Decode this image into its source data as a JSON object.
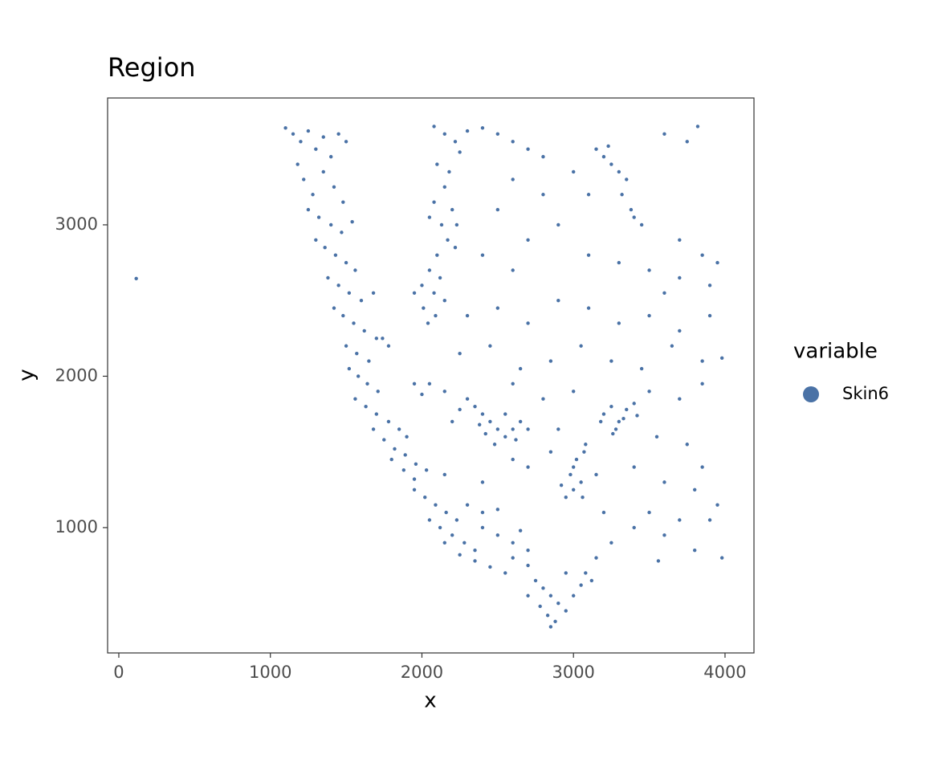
{
  "chart_data": {
    "type": "scatter",
    "title": "Region",
    "x_label": "x",
    "y_label": "y",
    "legend_title": "variable",
    "legend_position": "right",
    "xlim": [
      -74,
      4191
    ],
    "ylim": [
      172,
      3838
    ],
    "xticks": [
      0,
      1000,
      2000,
      3000,
      4000
    ],
    "yticks": [
      1000,
      2000,
      3000
    ],
    "grid": false,
    "series": [
      {
        "name": "Skin6",
        "color": "#4a72a6",
        "x": [
          115,
          1100,
          1150,
          1200,
          1250,
          1300,
          1350,
          1400,
          1450,
          1500,
          1180,
          1220,
          1280,
          1350,
          1420,
          1480,
          1250,
          1320,
          1400,
          1470,
          1540,
          1300,
          1360,
          1430,
          1500,
          1560,
          1380,
          1450,
          1520,
          1600,
          1680,
          1420,
          1480,
          1550,
          1620,
          1700,
          1780,
          1500,
          1570,
          1650,
          1740,
          1520,
          1580,
          1640,
          1710,
          1560,
          1630,
          1700,
          1780,
          1850,
          1900,
          1680,
          1750,
          1820,
          1890,
          1960,
          2030,
          1800,
          1880,
          1950,
          2150,
          1950,
          2020,
          2090,
          2160,
          2230,
          2050,
          2120,
          2200,
          2280,
          2350,
          2150,
          2250,
          2350,
          2450,
          2550,
          2400,
          2500,
          2600,
          2700,
          2650,
          2400,
          2500,
          2300,
          2600,
          2700,
          2750,
          2800,
          2850,
          2900,
          2950,
          2700,
          2780,
          2830,
          2880,
          2850,
          3000,
          3050,
          3080,
          2950,
          3120,
          2080,
          2150,
          2220,
          2300,
          2400,
          2500,
          2600,
          2700,
          2800,
          2250,
          2100,
          2180,
          2150,
          2080,
          2200,
          2130,
          2050,
          2170,
          2100,
          2220,
          2050,
          2120,
          2000,
          2080,
          2150,
          2010,
          2090,
          1950,
          2230,
          2040,
          2350,
          2400,
          2450,
          2500,
          2550,
          2600,
          2650,
          2480,
          2420,
          2700,
          2300,
          2250,
          2150,
          2050,
          1950,
          2550,
          2620,
          2380,
          2200,
          2000,
          3200,
          3250,
          3300,
          3350,
          3400,
          3280,
          3330,
          3420,
          3180,
          3260,
          2950,
          3000,
          3050,
          2980,
          3020,
          3070,
          2920,
          3060,
          3000,
          3080,
          3150,
          3200,
          3250,
          3300,
          3350,
          3320,
          3380,
          3400,
          3450,
          3230,
          2600,
          2800,
          3000,
          2500,
          2700,
          2900,
          3100,
          3600,
          3820,
          3750,
          2400,
          2600,
          3100,
          3300,
          3500,
          3700,
          3900,
          3850,
          3700,
          3950,
          2300,
          2500,
          2700,
          2900,
          3100,
          3300,
          3500,
          3700,
          3900,
          3600,
          2250,
          2450,
          2650,
          2850,
          3050,
          3250,
          3450,
          3650,
          3850,
          3980,
          2600,
          2800,
          3000,
          3500,
          3700,
          3850,
          2900,
          3550,
          3750,
          3850,
          2700,
          2850,
          3150,
          3400,
          3600,
          3800,
          3950,
          3500,
          3700,
          3900,
          2400,
          2600,
          3200,
          3400,
          3600,
          3800,
          3980,
          3560,
          3250,
          3150
        ],
        "values": [
          2645,
          3640,
          3600,
          3550,
          3620,
          3500,
          3580,
          3450,
          3600,
          3550,
          3400,
          3300,
          3200,
          3350,
          3250,
          3150,
          3100,
          3050,
          3000,
          2950,
          3020,
          2900,
          2850,
          2800,
          2750,
          2700,
          2650,
          2600,
          2550,
          2500,
          2550,
          2450,
          2400,
          2350,
          2300,
          2250,
          2200,
          2200,
          2150,
          2100,
          2250,
          2050,
          2000,
          1950,
          1900,
          1850,
          1800,
          1750,
          1700,
          1650,
          1600,
          1650,
          1580,
          1520,
          1480,
          1420,
          1380,
          1450,
          1380,
          1320,
          1350,
          1250,
          1200,
          1150,
          1100,
          1050,
          1050,
          1000,
          950,
          900,
          850,
          900,
          820,
          780,
          740,
          700,
          1000,
          950,
          900,
          850,
          980,
          1100,
          1120,
          1150,
          800,
          750,
          650,
          600,
          550,
          500,
          450,
          550,
          480,
          420,
          380,
          345,
          550,
          620,
          700,
          700,
          650,
          3650,
          3600,
          3550,
          3620,
          3640,
          3600,
          3550,
          3500,
          3450,
          3480,
          3400,
          3350,
          3250,
          3150,
          3100,
          3000,
          3050,
          2900,
          2800,
          2850,
          2700,
          2650,
          2600,
          2550,
          2500,
          2450,
          2400,
          2550,
          3000,
          2350,
          1800,
          1750,
          1700,
          1650,
          1600,
          1650,
          1700,
          1550,
          1620,
          1650,
          1850,
          1780,
          1900,
          1950,
          1950,
          1750,
          1580,
          1680,
          1700,
          1880,
          1750,
          1800,
          1700,
          1780,
          1820,
          1650,
          1720,
          1740,
          1700,
          1620,
          1200,
          1250,
          1300,
          1350,
          1450,
          1500,
          1280,
          1200,
          1400,
          1550,
          3500,
          3450,
          3400,
          3350,
          3300,
          3200,
          3100,
          3050,
          3000,
          3520,
          3300,
          3200,
          3350,
          3100,
          2900,
          3000,
          3200,
          3600,
          3650,
          3550,
          2800,
          2700,
          2800,
          2750,
          2700,
          2650,
          2600,
          2800,
          2900,
          2750,
          2400,
          2450,
          2350,
          2500,
          2450,
          2350,
          2400,
          2300,
          2400,
          2550,
          2150,
          2200,
          2050,
          2100,
          2200,
          2100,
          2050,
          2200,
          2100,
          2120,
          1950,
          1850,
          1900,
          1900,
          1850,
          1950,
          1650,
          1600,
          1550,
          1400,
          1400,
          1500,
          1350,
          1400,
          1300,
          1250,
          1150,
          1100,
          1050,
          1050,
          1300,
          1450,
          1100,
          1000,
          950,
          850,
          800,
          780,
          900,
          800
        ]
      }
    ]
  }
}
